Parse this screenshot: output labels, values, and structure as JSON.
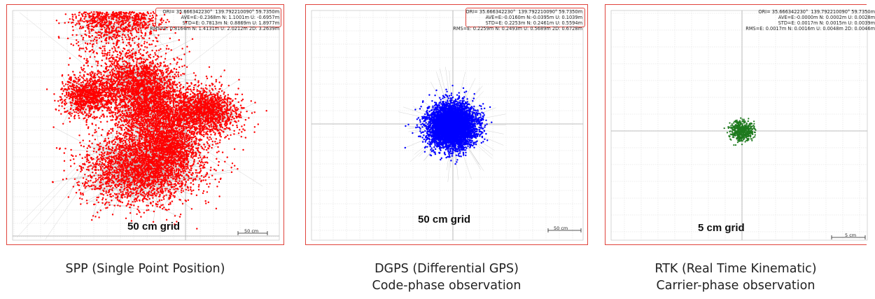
{
  "chart_data": [
    {
      "type": "scatter",
      "title": "",
      "grid": true,
      "grid_label": "50 cm grid",
      "scale_bar_label": "50 cm",
      "stats": {
        "ori": "ORI= 35.666342230°  139.792210090° 59.7350m",
        "ave": "AVE=E:-0.2368m N: 1.1001m U: -0.6957m",
        "std": "STD=E: 0.7813m N: 0.8869m U: 1.8977m",
        "rms": "RMS=E: 0.8164m N: 1.4131m U: 2.0212m 2D: 3.2639m"
      },
      "point_color": "#ff0000",
      "point_size_m": 0.016,
      "clusters_m": [
        {
          "center_e": -0.85,
          "center_n": 2.45,
          "spread_e": 0.3,
          "spread_n": 0.55,
          "count": 2600
        },
        {
          "center_e": -0.25,
          "center_n": 1.95,
          "spread_e": 0.28,
          "spread_n": 0.3,
          "count": 700
        },
        {
          "center_e": -1.1,
          "center_n": 0.4,
          "spread_e": 0.25,
          "spread_n": 0.2,
          "count": 900
        },
        {
          "center_e": -0.2,
          "center_n": 0.65,
          "spread_e": 0.4,
          "spread_n": 0.3,
          "count": 1500
        },
        {
          "center_e": 0.1,
          "center_n": 0.05,
          "spread_e": 0.35,
          "spread_n": 0.35,
          "count": 1500
        },
        {
          "center_e": 1.05,
          "center_n": 0.1,
          "spread_e": 0.35,
          "spread_n": 0.22,
          "count": 1500
        },
        {
          "center_e": -0.1,
          "center_n": -0.95,
          "spread_e": 0.55,
          "spread_n": 0.35,
          "count": 2600
        },
        {
          "center_e": 0.45,
          "center_n": -0.55,
          "spread_e": 0.3,
          "spread_n": 0.25,
          "count": 800
        }
      ]
    },
    {
      "type": "scatter",
      "title": "",
      "grid": true,
      "grid_label": "50 cm grid",
      "scale_bar_label": "50 cm",
      "stats": {
        "ori": "ORI= 35.666342230°  139.792210090° 59.7350m",
        "ave": "AVE=E:-0.0160m N:-0.0395m U: 0.1039m",
        "std": "STD=E: 0.2253m N: 0.2461m U: 0.5594m",
        "rms": "RMS=E: 0.2259m N: 0.2493m U: 0.5689m 2D: 0.6728m"
      },
      "point_color": "#0000ff",
      "point_size_m": 0.016,
      "clusters_m": [
        {
          "center_e": -0.016,
          "center_n": -0.04,
          "spread_e": 0.22,
          "spread_n": 0.2,
          "count": 5000
        }
      ]
    },
    {
      "type": "scatter",
      "title": "",
      "grid": true,
      "grid_label": "5 cm grid",
      "scale_bar_label": "5 cm",
      "stats": {
        "ori": "ORI= 35.666342230°  139.792210090° 59.7350m",
        "ave": "AVE=E:-0.0000m N: 0.0002m U: 0.0028m",
        "std": "STD=E: 0.0017m N: 0.0015m U: 0.0039m",
        "rms": "RMS=E: 0.0017m N: 0.0016m U: 0.0048m 2D: 0.0046m"
      },
      "point_color": "#1e7a1e",
      "point_size_m": 0.0002,
      "clusters_m": [
        {
          "center_e": 0.0,
          "center_n": 0.0002,
          "spread_e": 0.0017,
          "spread_n": 0.0015,
          "count": 500
        }
      ]
    }
  ],
  "captions": {
    "spp": "SPP (Single Point Position)",
    "dgps_1": "DGPS (Differential GPS)",
    "dgps_2": "Code-phase observation",
    "rtk_1": "RTK (Real Time Kinematic)",
    "rtk_2": "Carrier-phase observation"
  }
}
